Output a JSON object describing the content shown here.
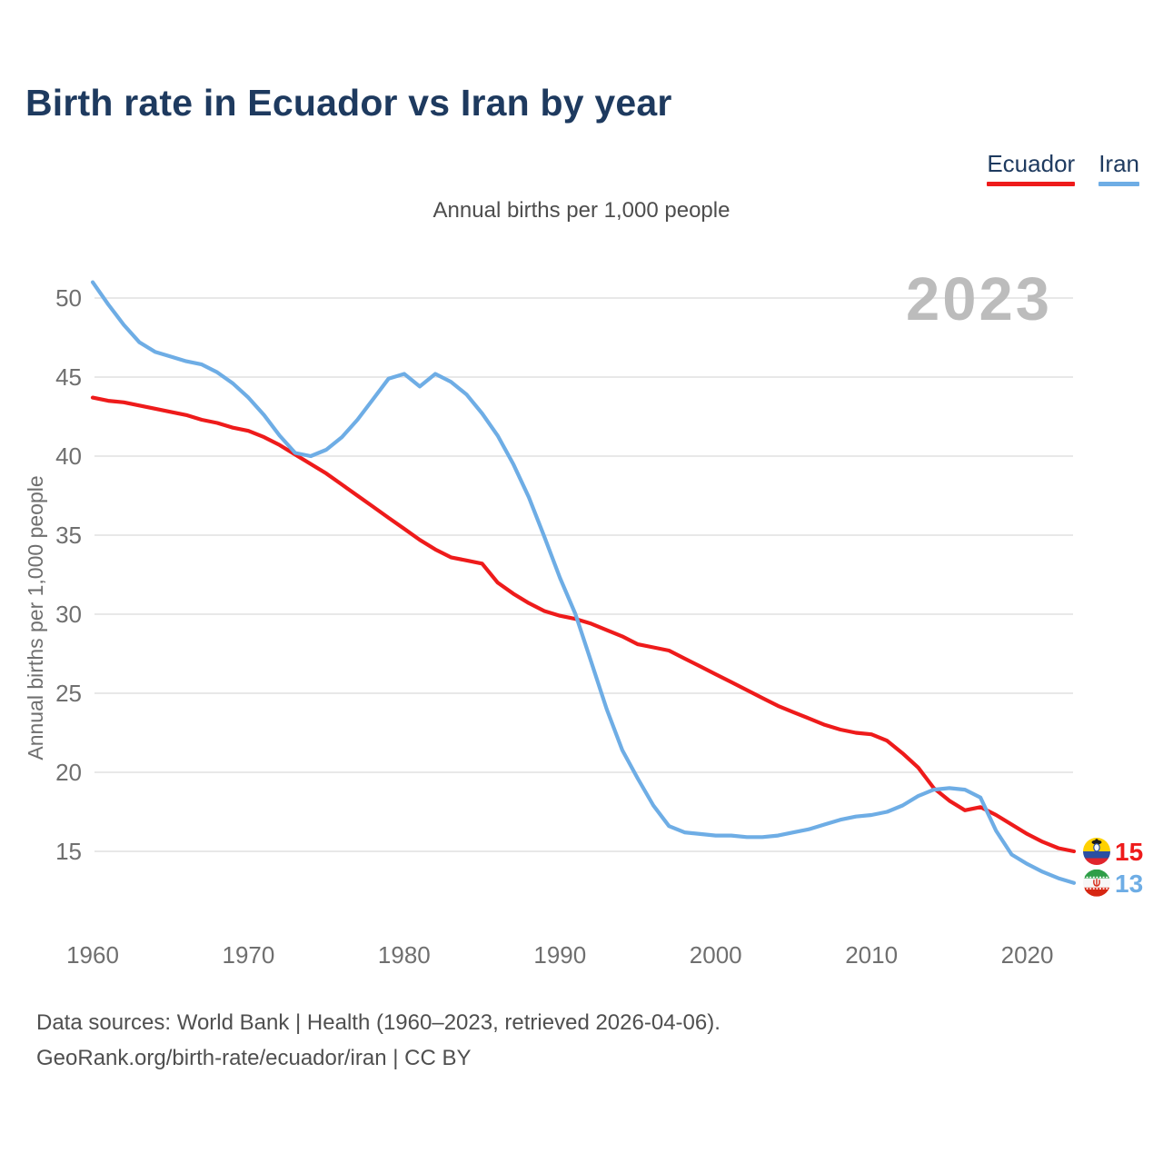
{
  "title": "Birth rate in Ecuador vs Iran by year",
  "subtitle": "Annual births per 1,000 people",
  "watermark": "2023",
  "legend": [
    {
      "label": "Ecuador",
      "color": "#ee1b1b"
    },
    {
      "label": "Iran",
      "color": "#6eade5"
    }
  ],
  "end_labels": [
    {
      "series": "Ecuador",
      "value": "15",
      "color": "#ee1b1b",
      "flag": "ecuador-flag-icon"
    },
    {
      "series": "Iran",
      "value": "13",
      "color": "#6eade5",
      "flag": "iran-flag-icon"
    }
  ],
  "footer": {
    "line1": "Data sources: World Bank | Health (1960–2023, retrieved 2026-04-06).",
    "line2": "GeoRank.org/birth-rate/ecuador/iran | CC BY"
  },
  "chart_data": {
    "type": "line",
    "title": "Birth rate in Ecuador vs Iran by year",
    "ylabel": "Annual births per 1,000 people",
    "xlabel": "",
    "grid": true,
    "legend_position": "top-right",
    "x_ticks": [
      1960,
      1970,
      1980,
      1990,
      2000,
      2010,
      2020
    ],
    "y_ticks": [
      15,
      20,
      25,
      30,
      35,
      40,
      45,
      50
    ],
    "ylim": [
      11.5,
      52
    ],
    "xlim": [
      1960,
      2023
    ],
    "x": [
      1960,
      1961,
      1962,
      1963,
      1964,
      1965,
      1966,
      1967,
      1968,
      1969,
      1970,
      1971,
      1972,
      1973,
      1974,
      1975,
      1976,
      1977,
      1978,
      1979,
      1980,
      1981,
      1982,
      1983,
      1984,
      1985,
      1986,
      1987,
      1988,
      1989,
      1990,
      1991,
      1992,
      1993,
      1994,
      1995,
      1996,
      1997,
      1998,
      1999,
      2000,
      2001,
      2002,
      2003,
      2004,
      2005,
      2006,
      2007,
      2008,
      2009,
      2010,
      2011,
      2012,
      2013,
      2014,
      2015,
      2016,
      2017,
      2018,
      2019,
      2020,
      2021,
      2022,
      2023
    ],
    "series": [
      {
        "name": "Ecuador",
        "color": "#ee1b1b",
        "values": [
          43.7,
          43.5,
          43.4,
          43.2,
          43.0,
          42.8,
          42.6,
          42.3,
          42.1,
          41.8,
          41.6,
          41.2,
          40.7,
          40.1,
          39.5,
          38.9,
          38.2,
          37.5,
          36.8,
          36.1,
          35.4,
          34.7,
          34.1,
          33.6,
          33.4,
          33.2,
          32.0,
          31.3,
          30.7,
          30.2,
          29.9,
          29.7,
          29.4,
          29.0,
          28.6,
          28.1,
          27.9,
          27.7,
          27.2,
          26.7,
          26.2,
          25.7,
          25.2,
          24.7,
          24.2,
          23.8,
          23.4,
          23.0,
          22.7,
          22.5,
          22.4,
          22.0,
          21.2,
          20.3,
          19.0,
          18.2,
          17.6,
          17.8,
          17.3,
          16.7,
          16.1,
          15.6,
          15.2,
          15.0
        ]
      },
      {
        "name": "Iran",
        "color": "#6eade5",
        "values": [
          51.0,
          49.6,
          48.3,
          47.2,
          46.6,
          46.3,
          46.0,
          45.8,
          45.3,
          44.6,
          43.7,
          42.6,
          41.3,
          40.2,
          40.0,
          40.4,
          41.2,
          42.3,
          43.6,
          44.9,
          45.2,
          44.4,
          45.2,
          44.7,
          43.9,
          42.7,
          41.3,
          39.5,
          37.4,
          34.9,
          32.3,
          30.0,
          27.0,
          24.0,
          21.4,
          19.6,
          17.9,
          16.6,
          16.2,
          16.1,
          16.0,
          16.0,
          15.9,
          15.9,
          16.0,
          16.2,
          16.4,
          16.7,
          17.0,
          17.2,
          17.3,
          17.5,
          17.9,
          18.5,
          18.9,
          19.0,
          18.9,
          18.4,
          16.3,
          14.8,
          14.2,
          13.7,
          13.3,
          13.0
        ]
      }
    ]
  }
}
